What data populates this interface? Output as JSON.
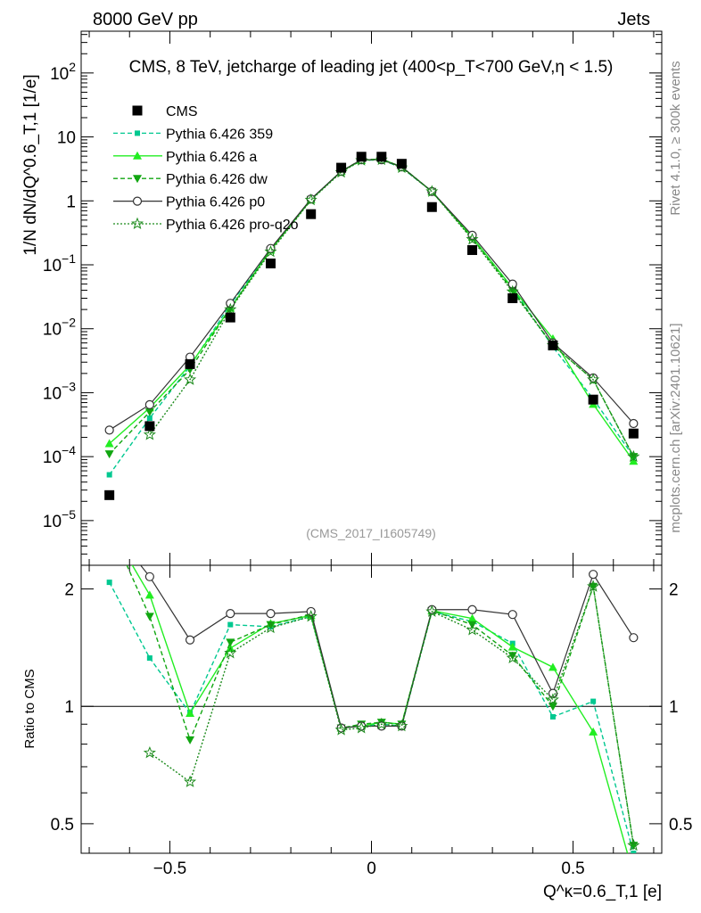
{
  "header": {
    "energy_label": "8000 GeV pp",
    "category_label": "Jets",
    "title": "CMS, 8 TeV, jetcharge of leading jet (400<p_T<700 GeV,η < 1.5)",
    "side_label_top": "Rivet 4.1.0, ≥ 300k events",
    "side_label_bottom": "mcplots.cern.ch [arXiv:2401.10621]",
    "watermark": "(CMS_2017_I1605749)"
  },
  "colors": {
    "cms": "#000000",
    "p359": "#00c890",
    "a": "#22ee22",
    "dw": "#11a611",
    "p0": "#333333",
    "proq2o": "#1b8a1b"
  },
  "chart_data": [
    {
      "type": "line",
      "name": "main-panel",
      "ylabel": "1/N dN/dQ^0.6_T,1 [1/e]",
      "yscale": "log",
      "ylim": [
        2e-06,
        450
      ],
      "xlim": [
        -0.72,
        0.72
      ],
      "y_tick_labels": [
        "10^-5",
        "10^-4",
        "10^-3",
        "10^-2",
        "10^-1",
        "1",
        "10",
        "10^2"
      ],
      "x": [
        -0.65,
        -0.55,
        -0.45,
        -0.35,
        -0.25,
        -0.15,
        -0.075,
        -0.025,
        0.025,
        0.075,
        0.15,
        0.25,
        0.35,
        0.45,
        0.55,
        0.65
      ],
      "series": [
        {
          "key": "cms",
          "name": "CMS",
          "style": "data",
          "values": [
            2.5e-05,
            0.0003,
            0.0028,
            0.015,
            0.105,
            0.62,
            3.3,
            4.9,
            4.9,
            3.8,
            0.8,
            0.17,
            0.03,
            0.0055,
            0.00078,
            0.00023
          ]
        },
        {
          "key": "p359",
          "name": "Pythia 6.426 359",
          "style": "dashed",
          "marker": "square",
          "values": [
            5.2e-05,
            0.0004,
            0.0026,
            0.024,
            0.17,
            1.05,
            2.9,
            4.3,
            4.4,
            3.3,
            1.4,
            0.27,
            0.043,
            0.0052,
            0.0008,
            0.0001
          ]
        },
        {
          "key": "a",
          "name": "Pythia 6.426 a",
          "style": "solid",
          "marker": "triangle-up",
          "values": [
            0.00016,
            0.00058,
            0.0027,
            0.021,
            0.17,
            1.05,
            2.9,
            4.3,
            4.5,
            3.4,
            1.4,
            0.27,
            0.043,
            0.007,
            0.00066,
            8.5e-05
          ]
        },
        {
          "key": "dw",
          "name": "Pythia 6.426 dw",
          "style": "dashed",
          "marker": "triangle-down",
          "values": [
            0.00011,
            0.0005,
            0.0023,
            0.021,
            0.17,
            1.05,
            2.9,
            4.4,
            4.5,
            3.4,
            1.4,
            0.26,
            0.04,
            0.0055,
            0.0016,
            0.0001
          ]
        },
        {
          "key": "p0",
          "name": "Pythia 6.426 p0",
          "style": "solid",
          "marker": "circle-open",
          "values": [
            0.00026,
            0.00065,
            0.0036,
            0.025,
            0.18,
            1.07,
            2.9,
            4.4,
            4.4,
            3.4,
            1.4,
            0.29,
            0.05,
            0.006,
            0.0017,
            0.00033
          ]
        },
        {
          "key": "proq2o",
          "name": "Pythia 6.426 pro-q2o",
          "style": "dotted",
          "marker": "star",
          "values": [
            null,
            0.00022,
            0.0016,
            0.02,
            0.16,
            1.03,
            2.8,
            4.3,
            4.4,
            3.3,
            1.4,
            0.25,
            0.038,
            0.0055,
            0.0016,
            0.0001
          ]
        }
      ]
    },
    {
      "type": "line",
      "name": "ratio-panel",
      "ylabel": "Ratio to CMS",
      "yscale": "log",
      "ylim": [
        0.42,
        2.3
      ],
      "xlim": [
        -0.72,
        0.72
      ],
      "xlabel": "Q^κ=0.6_T,1 [e]",
      "x_ticks": [
        -0.5,
        0,
        0.5
      ],
      "x_tick_labels": [
        "−0.5",
        "0",
        "0.5"
      ],
      "y_ticks": [
        0.5,
        1,
        2
      ],
      "y_tick_labels": [
        "0.5",
        "1",
        "2"
      ],
      "x": [
        -0.65,
        -0.55,
        -0.45,
        -0.35,
        -0.25,
        -0.15,
        -0.075,
        -0.025,
        0.025,
        0.075,
        0.15,
        0.25,
        0.35,
        0.45,
        0.55,
        0.65
      ],
      "series": [
        {
          "key": "p359",
          "values": [
            2.08,
            1.33,
            0.96,
            1.62,
            1.6,
            1.7,
            0.88,
            0.89,
            0.9,
            0.89,
            1.75,
            1.65,
            1.45,
            0.94,
            1.03,
            0.42
          ]
        },
        {
          "key": "a",
          "values": [
            2.9,
            1.93,
            0.96,
            1.41,
            1.63,
            1.71,
            0.88,
            0.89,
            0.91,
            0.9,
            1.76,
            1.68,
            1.42,
            1.26,
            0.86,
            0.37
          ]
        },
        {
          "key": "dw",
          "values": [
            2.9,
            1.7,
            0.82,
            1.46,
            1.62,
            1.72,
            0.88,
            0.9,
            0.91,
            0.9,
            1.76,
            1.62,
            1.35,
            1.0,
            2.03,
            0.44
          ]
        },
        {
          "key": "p0",
          "values": [
            2.9,
            2.15,
            1.48,
            1.73,
            1.73,
            1.75,
            0.88,
            0.89,
            0.89,
            0.89,
            1.77,
            1.77,
            1.72,
            1.08,
            2.18,
            1.5
          ]
        },
        {
          "key": "proq2o",
          "values": [
            null,
            0.76,
            0.64,
            1.37,
            1.59,
            1.7,
            0.87,
            0.88,
            0.9,
            0.89,
            1.75,
            1.57,
            1.33,
            1.04,
            2.03,
            0.44
          ]
        }
      ]
    }
  ]
}
